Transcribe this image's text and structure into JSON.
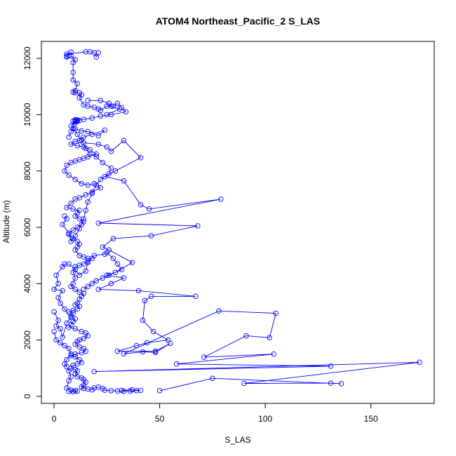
{
  "chart_data": {
    "type": "line",
    "title": "ATOM4 Northeast_Pacific_2 S_LAS",
    "xlabel": "S_LAS",
    "ylabel": "Altitude (m)",
    "xlim": [
      -6,
      180
    ],
    "ylim": [
      -250,
      12600
    ],
    "x_ticks": [
      0,
      50,
      100,
      150
    ],
    "y_ticks": [
      0,
      2000,
      4000,
      6000,
      8000,
      10000,
      12000
    ],
    "grid": false,
    "legend": "none",
    "marker": "open-circle",
    "color": "#0000ff",
    "series": [
      {
        "points": [
          [
            6,
            12050
          ],
          [
            6,
            12080
          ],
          [
            7,
            12100
          ],
          [
            8,
            12220
          ],
          [
            8,
            12080
          ],
          [
            10,
            11950
          ],
          [
            9,
            11850
          ],
          [
            9,
            11500
          ],
          [
            9,
            11230
          ],
          [
            11,
            11100
          ],
          [
            10,
            10850
          ],
          [
            9,
            10800
          ],
          [
            10,
            10780
          ],
          [
            12,
            10780
          ],
          [
            13,
            10700
          ],
          [
            12,
            10600
          ],
          [
            14,
            10350
          ],
          [
            16,
            10300
          ],
          [
            19,
            10260
          ],
          [
            21,
            10200
          ],
          [
            22,
            10150
          ],
          [
            25,
            10300
          ],
          [
            28,
            10300
          ],
          [
            30,
            10400
          ],
          [
            32,
            10250
          ],
          [
            34,
            10100
          ],
          [
            27,
            10000
          ],
          [
            22,
            9950
          ],
          [
            18,
            9880
          ],
          [
            14,
            9830
          ],
          [
            11,
            9800
          ],
          [
            10,
            9780
          ],
          [
            9,
            9770
          ],
          [
            10,
            9700
          ],
          [
            8,
            9600
          ],
          [
            10,
            9500
          ],
          [
            13,
            9420
          ],
          [
            16,
            9400
          ],
          [
            21,
            9250
          ],
          [
            24,
            9450
          ],
          [
            18,
            9300
          ],
          [
            14,
            9200
          ],
          [
            12,
            9080
          ],
          [
            10,
            9050
          ],
          [
            8,
            8950
          ],
          [
            11,
            8900
          ],
          [
            14,
            8850
          ],
          [
            17,
            8750
          ],
          [
            20,
            8600
          ],
          [
            16,
            8500
          ],
          [
            14,
            8450
          ],
          [
            12,
            8400
          ],
          [
            10,
            8350
          ],
          [
            8,
            8300
          ],
          [
            6,
            8200
          ],
          [
            5,
            8000
          ],
          [
            7,
            7850
          ],
          [
            10,
            7700
          ],
          [
            13,
            7550
          ],
          [
            16,
            7500
          ],
          [
            19,
            7550
          ],
          [
            22,
            7400
          ],
          [
            18,
            7250
          ],
          [
            15,
            7150
          ],
          [
            12,
            7050
          ],
          [
            10,
            7000
          ],
          [
            8,
            6850
          ],
          [
            6,
            6700
          ],
          [
            9,
            6650
          ],
          [
            12,
            6600
          ],
          [
            11,
            6500
          ],
          [
            10,
            6400
          ],
          [
            12,
            6300
          ],
          [
            14,
            6200
          ],
          [
            13,
            6100
          ],
          [
            11,
            6000
          ],
          [
            9,
            5900
          ],
          [
            7,
            5750
          ],
          [
            9,
            5600
          ],
          [
            11,
            5500
          ],
          [
            12,
            5400
          ],
          [
            11,
            5300
          ],
          [
            10,
            5200
          ],
          [
            12,
            5000
          ],
          [
            14,
            4950
          ],
          [
            16,
            4900
          ],
          [
            18,
            4900
          ],
          [
            16,
            4800
          ],
          [
            14,
            4700
          ],
          [
            12,
            4650
          ],
          [
            10,
            4600
          ],
          [
            9,
            4400
          ],
          [
            10,
            4200
          ],
          [
            9,
            4000
          ],
          [
            8,
            3900
          ],
          [
            10,
            3800
          ],
          [
            12,
            3700
          ],
          [
            14,
            3650
          ],
          [
            13,
            3550
          ],
          [
            12,
            3450
          ],
          [
            11,
            3300
          ],
          [
            10,
            3250
          ],
          [
            12,
            3200
          ],
          [
            11,
            3100
          ],
          [
            9,
            3050
          ],
          [
            7,
            3000
          ],
          [
            9,
            2950
          ],
          [
            8,
            2850
          ],
          [
            10,
            2750
          ],
          [
            9,
            2650
          ],
          [
            8,
            2550
          ],
          [
            7,
            2450
          ],
          [
            10,
            2400
          ],
          [
            13,
            2300
          ],
          [
            15,
            2250
          ],
          [
            16,
            2150
          ],
          [
            14,
            2050
          ],
          [
            12,
            2000
          ],
          [
            11,
            1950
          ],
          [
            10,
            1850
          ],
          [
            12,
            1750
          ],
          [
            14,
            1700
          ],
          [
            15,
            1600
          ],
          [
            13,
            1550
          ],
          [
            10,
            1500
          ],
          [
            8,
            1450
          ],
          [
            10,
            1400
          ],
          [
            12,
            1300
          ],
          [
            13,
            1200
          ],
          [
            11,
            1150
          ],
          [
            9,
            1100
          ],
          [
            8,
            1000
          ],
          [
            10,
            950
          ],
          [
            11,
            900
          ],
          [
            10,
            800
          ],
          [
            11,
            700
          ],
          [
            13,
            650
          ],
          [
            14,
            600
          ],
          [
            15,
            500
          ],
          [
            14,
            400
          ],
          [
            13,
            330
          ],
          [
            14,
            280
          ],
          [
            16,
            260
          ],
          [
            18,
            230
          ],
          [
            19,
            300
          ],
          [
            21,
            330
          ],
          [
            23,
            280
          ],
          [
            24,
            220
          ],
          [
            27,
            200
          ],
          [
            30,
            190
          ],
          [
            33,
            180
          ],
          [
            36,
            190
          ],
          [
            39,
            200
          ],
          [
            41,
            210
          ],
          [
            37,
            230
          ],
          [
            32,
            210
          ]
        ]
      },
      {
        "points": [
          [
            6,
            12150
          ],
          [
            15,
            12230
          ],
          [
            17,
            12230
          ],
          [
            19,
            12200
          ],
          [
            20,
            12050
          ],
          [
            21,
            12200
          ]
        ]
      },
      {
        "points": [
          [
            16,
            10500
          ],
          [
            22,
            10500
          ],
          [
            26,
            10400
          ],
          [
            27,
            10300
          ],
          [
            31,
            10200
          ],
          [
            25,
            10000
          ]
        ]
      },
      {
        "points": [
          [
            11,
            9810
          ],
          [
            12,
            9790
          ],
          [
            11,
            9760
          ],
          [
            10,
            9820
          ],
          [
            10,
            9750
          ]
        ]
      },
      {
        "points": [
          [
            14,
            9000
          ],
          [
            21,
            8950
          ],
          [
            25,
            8850
          ],
          [
            27,
            8700
          ],
          [
            33,
            9080
          ],
          [
            41,
            8470
          ],
          [
            29,
            8000
          ],
          [
            24,
            7800
          ],
          [
            33,
            7650
          ],
          [
            41,
            6800
          ],
          [
            45,
            6650
          ],
          [
            79,
            7000
          ],
          [
            21,
            6150
          ],
          [
            68,
            6050
          ],
          [
            46,
            5700
          ],
          [
            28,
            5600
          ],
          [
            23,
            5300
          ],
          [
            26,
            5200
          ],
          [
            37,
            4750
          ],
          [
            29,
            4400
          ],
          [
            25,
            4300
          ],
          [
            33,
            4200
          ],
          [
            27,
            4000
          ],
          [
            21,
            3800
          ],
          [
            40,
            3750
          ],
          [
            67,
            3550
          ],
          [
            46,
            3550
          ],
          [
            43,
            3400
          ],
          [
            42,
            2700
          ],
          [
            47,
            2300
          ],
          [
            54,
            2000
          ],
          [
            44,
            1900
          ],
          [
            39,
            1800
          ],
          [
            30,
            1600
          ],
          [
            48,
            1600
          ],
          [
            55,
            1880
          ],
          [
            48,
            1560
          ],
          [
            42,
            1580
          ],
          [
            33,
            1510
          ],
          [
            78,
            3030
          ],
          [
            105,
            2950
          ],
          [
            102,
            2080
          ],
          [
            91,
            2150
          ],
          [
            71,
            1390
          ],
          [
            104,
            1500
          ],
          [
            58,
            1150
          ],
          [
            131,
            1070
          ],
          [
            19,
            880
          ],
          [
            173,
            1210
          ],
          [
            90,
            460
          ],
          [
            131,
            470
          ],
          [
            136,
            450
          ],
          [
            75,
            640
          ],
          [
            50,
            200
          ]
        ]
      },
      {
        "points": [
          [
            0,
            2300
          ],
          [
            1,
            2000
          ],
          [
            3,
            1900
          ],
          [
            5,
            1800
          ],
          [
            7,
            1700
          ],
          [
            8,
            1500
          ],
          [
            6,
            1300
          ],
          [
            5,
            1150
          ],
          [
            6,
            1050
          ],
          [
            7,
            900
          ],
          [
            8,
            700
          ],
          [
            7,
            550
          ],
          [
            6,
            300
          ],
          [
            8,
            220
          ],
          [
            10,
            200
          ],
          [
            11,
            180
          ],
          [
            9,
            160
          ],
          [
            7,
            180
          ]
        ]
      },
      {
        "points": [
          [
            0,
            3000
          ],
          [
            2,
            2700
          ],
          [
            1,
            2500
          ],
          [
            3,
            2400
          ],
          [
            4,
            2100
          ],
          [
            6,
            2600
          ],
          [
            8,
            2800
          ],
          [
            5,
            3100
          ],
          [
            3,
            3300
          ],
          [
            2,
            3500
          ],
          [
            4,
            3750
          ],
          [
            0,
            3800
          ],
          [
            2,
            4000
          ],
          [
            1,
            4300
          ],
          [
            4,
            4600
          ],
          [
            5,
            4700
          ],
          [
            7,
            4700
          ],
          [
            10,
            4500
          ],
          [
            12,
            4300
          ],
          [
            15,
            4450
          ],
          [
            16,
            4750
          ],
          [
            19,
            5000
          ],
          [
            24,
            5050
          ],
          [
            25,
            5100
          ],
          [
            28,
            4900
          ],
          [
            30,
            4700
          ],
          [
            32,
            4500
          ],
          [
            26,
            4300
          ],
          [
            23,
            4200
          ],
          [
            20,
            4100
          ],
          [
            18,
            4000
          ],
          [
            16,
            3900
          ],
          [
            14,
            3800
          ]
        ]
      },
      {
        "points": [
          [
            5,
            6400
          ],
          [
            6,
            6300
          ],
          [
            4,
            6100
          ],
          [
            7,
            5800
          ],
          [
            8,
            5500
          ],
          [
            10,
            5700
          ],
          [
            12,
            5950
          ],
          [
            14,
            6300
          ],
          [
            15,
            6600
          ],
          [
            16,
            6900
          ],
          [
            18,
            7200
          ],
          [
            20,
            7500
          ],
          [
            22,
            7700
          ],
          [
            26,
            7900
          ],
          [
            27,
            8100
          ],
          [
            23,
            8300
          ],
          [
            20,
            8500
          ],
          [
            17,
            8600
          ],
          [
            15,
            8800
          ],
          [
            13,
            9100
          ],
          [
            11,
            9300
          ],
          [
            9,
            9500
          ],
          [
            8,
            9400
          ],
          [
            7,
            9200
          ]
        ]
      }
    ]
  }
}
